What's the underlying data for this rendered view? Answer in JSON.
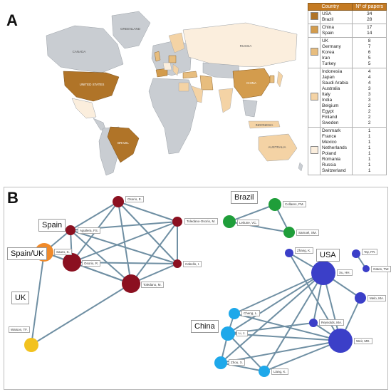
{
  "panel_a": {
    "letter": "A",
    "map_labels": [
      "GREENLAND",
      "CANADA",
      "UNITED STATES",
      "BRAZIL",
      "RUSSIA",
      "CHINA",
      "INDONESIA",
      "AUSTRALIA"
    ],
    "legend": {
      "header_country": "Country",
      "header_papers": "Nº of papers",
      "groups": [
        {
          "color": "#b07428",
          "countries": [
            "USA",
            "Brazil"
          ],
          "papers": [
            "34",
            "28"
          ]
        },
        {
          "color": "#d39c4d",
          "countries": [
            "China",
            "Spain"
          ],
          "papers": [
            "17",
            "14"
          ]
        },
        {
          "color": "#e7bd7e",
          "countries": [
            "UK",
            "Germany",
            "Korea",
            "Iran",
            "Turkey"
          ],
          "papers": [
            "8",
            "7",
            "6",
            "5",
            "5"
          ]
        },
        {
          "color": "#f4d3a5",
          "countries": [
            "Indonesia",
            "Japan",
            "Saudi Arabia",
            "Australia",
            "Italy",
            "India",
            "Belgium",
            "Egypt",
            "Finland",
            "Sweden"
          ],
          "papers": [
            "4",
            "4",
            "4",
            "3",
            "3",
            "3",
            "2",
            "2",
            "2",
            "2"
          ]
        },
        {
          "color": "#fbeedd",
          "countries": [
            "Denmark",
            "France",
            "Mexico",
            "Netherlands",
            "Poland",
            "Romania",
            "Russia",
            "Switzerland"
          ],
          "papers": [
            "1",
            "1",
            "1",
            "1",
            "1",
            "1",
            "1",
            "1"
          ]
        }
      ]
    }
  },
  "panel_b": {
    "letter": "B",
    "groups": [
      {
        "id": "spain",
        "label": "Spain"
      },
      {
        "id": "spainuk",
        "label": "Spain/UK"
      },
      {
        "id": "uk",
        "label": "UK"
      },
      {
        "id": "brazil",
        "label": "Brazil"
      },
      {
        "id": "usa",
        "label": "USA"
      },
      {
        "id": "china",
        "label": "China"
      }
    ],
    "nodes": [
      {
        "id": "osorio_e",
        "label": "Osorio, E.",
        "color": "#8b1020"
      },
      {
        "id": "toledano_osorio_m",
        "label": "Toledano-Osorio, M.",
        "color": "#8b1020"
      },
      {
        "id": "aguilera_fs",
        "label": "Aguilera, FS.",
        "color": "#8b1020"
      },
      {
        "id": "cabello_i",
        "label": "Cabello, I.",
        "color": "#8b1020"
      },
      {
        "id": "osorio_r",
        "label": "Osorio, R.",
        "color": "#8b1020"
      },
      {
        "id": "toledano_m",
        "label": "Toledano, M.",
        "color": "#8b1020"
      },
      {
        "id": "sauro_s",
        "label": "Sauro, S.",
        "color": "#f08a2a"
      },
      {
        "id": "watson_tf",
        "label": "Watson, TF.",
        "color": "#f2c21f"
      },
      {
        "id": "collares_fm",
        "label": "Collares, FM.",
        "color": "#1f9e3a"
      },
      {
        "id": "leitune_vc",
        "label": "Leitune, VC.",
        "color": "#1f9e3a"
      },
      {
        "id": "samuel_sm",
        "label": "Samuel, SM.",
        "color": "#1f9e3a"
      },
      {
        "id": "tay_fr",
        "label": "Tay, FR.",
        "color": "#3b3fc8"
      },
      {
        "id": "oates_tw",
        "label": "Oates, TW.",
        "color": "#3b3fc8"
      },
      {
        "id": "zhang_k",
        "label": "Zhang, K.",
        "color": "#3b3fc8"
      },
      {
        "id": "xu_hh",
        "label": "Xu, HH.",
        "color": "#3b3fc8"
      },
      {
        "id": "melo_ma",
        "label": "Melo, MA.",
        "color": "#3b3fc8"
      },
      {
        "id": "reynolds_ma",
        "label": "Reynolds, MA.",
        "color": "#3b3fc8"
      },
      {
        "id": "weir_md",
        "label": "Weir, MD.",
        "color": "#3b3fc8"
      },
      {
        "id": "cheng_l",
        "label": "Cheng, L.",
        "color": "#1ea8ea"
      },
      {
        "id": "li_j",
        "label": "Li, J.",
        "color": "#1ea8ea"
      },
      {
        "id": "zhou_x",
        "label": "Zhou, X.",
        "color": "#1ea8ea"
      },
      {
        "id": "liang_k",
        "label": "Liang, K.",
        "color": "#1ea8ea"
      }
    ],
    "edges": [
      [
        "osorio_e",
        "toledano_osorio_m"
      ],
      [
        "osorio_e",
        "aguilera_fs"
      ],
      [
        "osorio_e",
        "osorio_r"
      ],
      [
        "osorio_e",
        "toledano_m"
      ],
      [
        "osorio_e",
        "cabello_i"
      ],
      [
        "toledano_osorio_m",
        "aguilera_fs"
      ],
      [
        "toledano_osorio_m",
        "osorio_r"
      ],
      [
        "toledano_osorio_m",
        "toledano_m"
      ],
      [
        "toledano_osorio_m",
        "cabello_i"
      ],
      [
        "aguilera_fs",
        "osorio_r"
      ],
      [
        "aguilera_fs",
        "toledano_m"
      ],
      [
        "aguilera_fs",
        "cabello_i"
      ],
      [
        "osorio_r",
        "toledano_m"
      ],
      [
        "osorio_r",
        "cabello_i"
      ],
      [
        "toledano_m",
        "cabello_i"
      ],
      [
        "sauro_s",
        "osorio_r"
      ],
      [
        "sauro_s",
        "toledano_m"
      ],
      [
        "sauro_s",
        "watson_tf"
      ],
      [
        "watson_tf",
        "toledano_m"
      ],
      [
        "aguilera_fs",
        "sauro_s"
      ],
      [
        "collares_fm",
        "leitune_vc"
      ],
      [
        "collares_fm",
        "samuel_sm"
      ],
      [
        "leitune_vc",
        "samuel_sm"
      ],
      [
        "tay_fr",
        "oates_tw"
      ],
      [
        "zhang_k",
        "xu_hh"
      ],
      [
        "xu_hh",
        "melo_ma"
      ],
      [
        "xu_hh",
        "weir_md"
      ],
      [
        "xu_hh",
        "reynolds_ma"
      ],
      [
        "melo_ma",
        "weir_md"
      ],
      [
        "zhang_k",
        "weir_md"
      ],
      [
        "reynolds_ma",
        "weir_md"
      ],
      [
        "cheng_l",
        "xu_hh"
      ],
      [
        "li_j",
        "xu_hh"
      ],
      [
        "li_j",
        "weir_md"
      ],
      [
        "zhou_x",
        "xu_hh"
      ],
      [
        "liang_k",
        "xu_hh"
      ],
      [
        "liang_k",
        "weir_md"
      ],
      [
        "cheng_l",
        "li_j"
      ],
      [
        "li_j",
        "zhou_x"
      ],
      [
        "li_j",
        "liang_k"
      ],
      [
        "zhou_x",
        "liang_k"
      ],
      [
        "zhou_x",
        "weir_md"
      ],
      [
        "cheng_l",
        "weir_md"
      ],
      [
        "li_j",
        "reynolds_ma"
      ]
    ]
  }
}
